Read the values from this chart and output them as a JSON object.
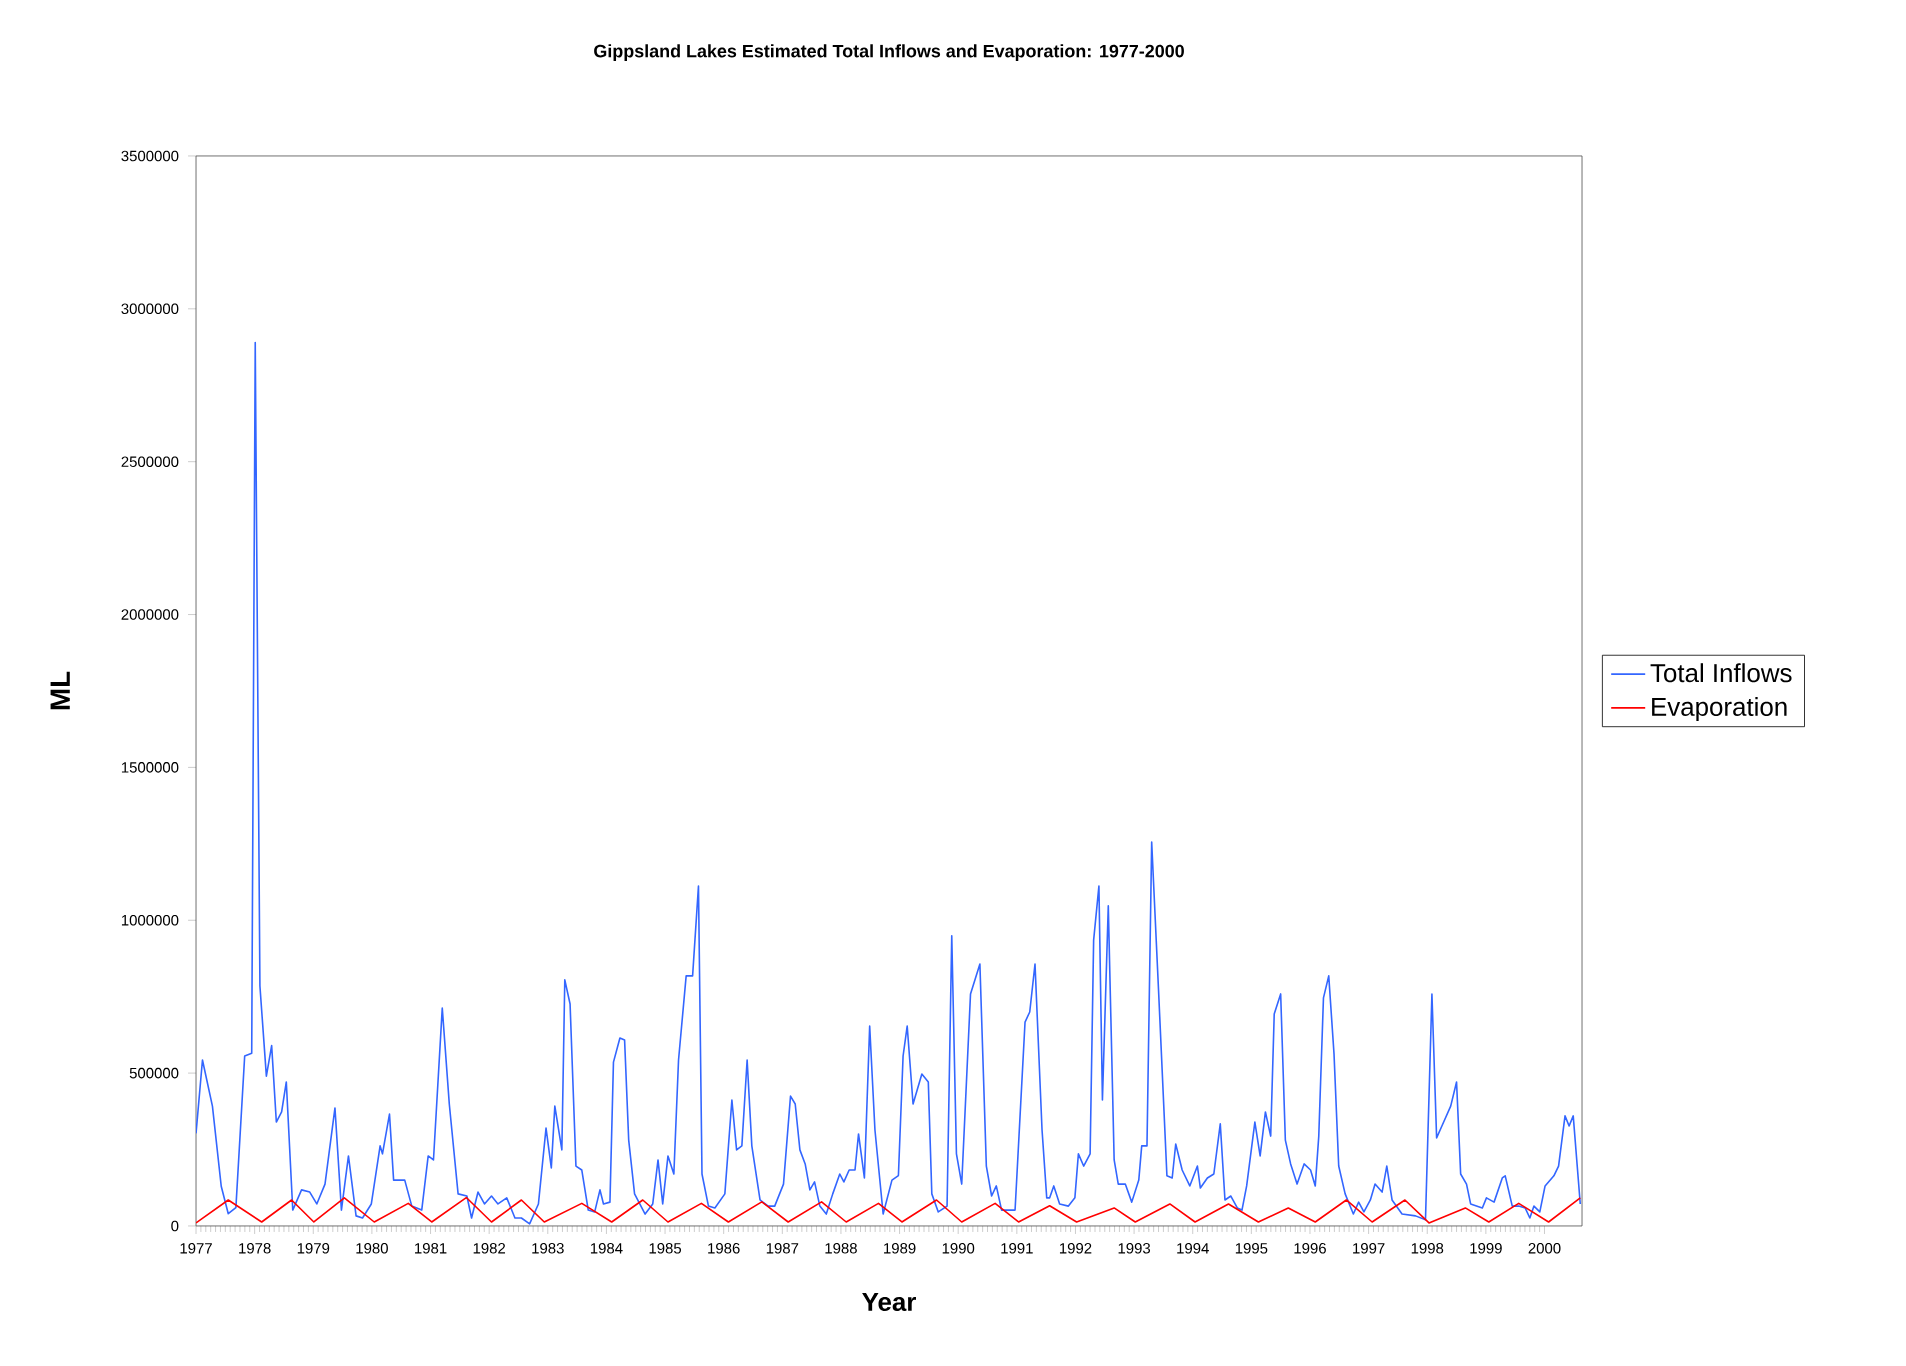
{
  "chart_data": {
    "type": "line",
    "title": "Gippsland Lakes Estimated Total Inflows and Evaporation: 1977-2000",
    "xlabel": "Year",
    "ylabel": "ML",
    "xlim": [
      1977,
      2000.64
    ],
    "xticks": [
      1977,
      1978,
      1979,
      1980,
      1981,
      1982,
      1983,
      1984,
      1985,
      1986,
      1987,
      1988,
      1989,
      1990,
      1991,
      1992,
      1993,
      1994,
      1995,
      1996,
      1997,
      1998,
      1999,
      2000
    ],
    "ylim": [
      0,
      3500000
    ],
    "yticks": [
      0,
      500000,
      1000000,
      1500000,
      2000000,
      2500000,
      3000000,
      3500000
    ],
    "legend": "right",
    "series": [
      {
        "name": "Total Inflows",
        "color": "#3366ff",
        "x": [
          1977.0,
          1977.11,
          1977.28,
          1977.43,
          1977.55,
          1977.68,
          1977.83,
          1977.95,
          1978.01,
          1978.09,
          1978.2,
          1978.29,
          1978.37,
          1978.46,
          1978.54,
          1978.65,
          1978.8,
          1978.94,
          1979.06,
          1979.2,
          1979.37,
          1979.48,
          1979.6,
          1979.73,
          1979.84,
          1979.99,
          1980.14,
          1980.18,
          1980.3,
          1980.37,
          1980.56,
          1980.68,
          1980.85,
          1980.96,
          1981.05,
          1981.2,
          1981.32,
          1981.47,
          1981.62,
          1981.7,
          1981.81,
          1981.92,
          1982.04,
          1982.15,
          1982.3,
          1982.44,
          1982.55,
          1982.69,
          1982.84,
          1982.97,
          1983.06,
          1983.12,
          1983.24,
          1983.29,
          1983.38,
          1983.48,
          1983.58,
          1983.69,
          1983.8,
          1983.89,
          1983.95,
          1984.06,
          1984.12,
          1984.23,
          1984.31,
          1984.38,
          1984.48,
          1984.66,
          1984.79,
          1984.88,
          1984.96,
          1985.05,
          1985.15,
          1985.23,
          1985.36,
          1985.47,
          1985.57,
          1985.63,
          1985.74,
          1985.85,
          1986.02,
          1986.14,
          1986.22,
          1986.31,
          1986.4,
          1986.48,
          1986.62,
          1986.76,
          1986.87,
          1987.02,
          1987.14,
          1987.22,
          1987.3,
          1987.39,
          1987.47,
          1987.55,
          1987.64,
          1987.75,
          1987.86,
          1987.98,
          1988.05,
          1988.14,
          1988.24,
          1988.3,
          1988.4,
          1988.49,
          1988.58,
          1988.72,
          1988.87,
          1988.98,
          1989.06,
          1989.13,
          1989.23,
          1989.38,
          1989.49,
          1989.55,
          1989.66,
          1989.81,
          1989.89,
          1989.97,
          1990.06,
          1990.21,
          1990.37,
          1990.48,
          1990.57,
          1990.65,
          1990.74,
          1990.97,
          1991.14,
          1991.22,
          1991.31,
          1991.43,
          1991.51,
          1991.56,
          1991.63,
          1991.73,
          1991.88,
          1991.99,
          1992.05,
          1992.14,
          1992.25,
          1992.31,
          1992.4,
          1992.46,
          1992.56,
          1992.66,
          1992.73,
          1992.85,
          1992.96,
          1993.08,
          1993.13,
          1993.22,
          1993.3,
          1993.42,
          1993.56,
          1993.65,
          1993.71,
          1993.82,
          1993.95,
          1994.08,
          1994.13,
          1994.25,
          1994.36,
          1994.47,
          1994.55,
          1994.65,
          1994.76,
          1994.84,
          1994.92,
          1995.06,
          1995.15,
          1995.24,
          1995.33,
          1995.39,
          1995.5,
          1995.58,
          1995.67,
          1995.78,
          1995.9,
          1996.01,
          1996.09,
          1996.15,
          1996.23,
          1996.32,
          1996.41,
          1996.49,
          1996.6,
          1996.74,
          1996.83,
          1996.92,
          1997.03,
          1997.11,
          1997.23,
          1997.31,
          1997.4,
          1997.57,
          1997.8,
          1997.97,
          1998.08,
          1998.16,
          1998.25,
          1998.4,
          1998.5,
          1998.57,
          1998.67,
          1998.74,
          1998.94,
          1999.01,
          1999.14,
          1999.28,
          1999.33,
          1999.45,
          1999.56,
          1999.67,
          1999.75,
          1999.82,
          1999.92,
          2000.01,
          2000.16,
          2000.24,
          2000.35,
          2000.42,
          2000.49,
          2000.61
        ],
        "values": [
          303000,
          543000,
          392000,
          130000,
          40000,
          60000,
          556000,
          565000,
          2890000,
          785000,
          490000,
          590000,
          340000,
          373000,
          471000,
          52000,
          118000,
          111000,
          72000,
          137000,
          386000,
          52000,
          229000,
          33000,
          26000,
          72000,
          262000,
          236000,
          366000,
          150000,
          150000,
          65000,
          52000,
          229000,
          216000,
          713000,
          399000,
          105000,
          98000,
          26000,
          111000,
          72000,
          98000,
          72000,
          92000,
          26000,
          26000,
          7000,
          72000,
          320000,
          190000,
          392000,
          249000,
          805000,
          726000,
          196000,
          183000,
          52000,
          46000,
          118000,
          72000,
          78000,
          536000,
          615000,
          608000,
          281000,
          105000,
          39000,
          72000,
          216000,
          72000,
          229000,
          170000,
          543000,
          818000,
          818000,
          1112000,
          170000,
          65000,
          59000,
          105000,
          412000,
          249000,
          262000,
          543000,
          262000,
          85000,
          65000,
          65000,
          137000,
          425000,
          399000,
          249000,
          203000,
          118000,
          144000,
          65000,
          39000,
          105000,
          170000,
          144000,
          183000,
          183000,
          301000,
          157000,
          654000,
          314000,
          39000,
          150000,
          165000,
          556000,
          654000,
          399000,
          497000,
          471000,
          105000,
          46000,
          65000,
          949000,
          236000,
          137000,
          759000,
          857000,
          196000,
          98000,
          131000,
          52000,
          52000,
          667000,
          700000,
          857000,
          314000,
          92000,
          92000,
          131000,
          72000,
          65000,
          92000,
          236000,
          196000,
          236000,
          935000,
          1112000,
          412000,
          1047000,
          216000,
          137000,
          137000,
          78000,
          150000,
          262000,
          262000,
          1256000,
          759000,
          164000,
          157000,
          268000,
          183000,
          131000,
          196000,
          124000,
          157000,
          170000,
          334000,
          85000,
          98000,
          59000,
          52000,
          131000,
          340000,
          229000,
          373000,
          294000,
          693000,
          759000,
          281000,
          203000,
          137000,
          203000,
          183000,
          131000,
          294000,
          746000,
          818000,
          563000,
          196000,
          105000,
          39000,
          78000,
          46000,
          85000,
          137000,
          111000,
          196000,
          85000,
          39000,
          33000,
          20000,
          759000,
          288000,
          327000,
          392000,
          471000,
          170000,
          137000,
          72000,
          59000,
          92000,
          78000,
          157000,
          164000,
          65000,
          65000,
          59000,
          26000,
          65000,
          46000,
          131000,
          164000,
          196000,
          360000,
          327000,
          360000,
          72000
        ]
      },
      {
        "name": "Evaporation",
        "color": "#ff0000",
        "x": [
          1977.0,
          1977.55,
          1978.12,
          1978.63,
          1979.01,
          1979.53,
          1980.04,
          1980.62,
          1981.02,
          1981.61,
          1982.04,
          1982.55,
          1982.94,
          1983.58,
          1984.09,
          1984.62,
          1985.05,
          1985.62,
          1986.08,
          1986.65,
          1987.1,
          1987.67,
          1988.09,
          1988.64,
          1989.04,
          1989.63,
          1990.06,
          1990.63,
          1991.03,
          1991.56,
          1992.02,
          1992.66,
          1993.02,
          1993.61,
          1994.04,
          1994.61,
          1995.12,
          1995.63,
          1996.09,
          1996.62,
          1997.06,
          1997.62,
          1998.03,
          1998.65,
          1999.05,
          1999.56,
          2000.07,
          2000.61
        ],
        "values": [
          10000,
          85000,
          13000,
          85000,
          13000,
          92000,
          13000,
          74000,
          13000,
          93000,
          13000,
          85000,
          13000,
          74000,
          13000,
          85000,
          13000,
          74000,
          13000,
          79000,
          13000,
          79000,
          13000,
          74000,
          13000,
          85000,
          13000,
          74000,
          13000,
          66000,
          13000,
          59000,
          13000,
          72000,
          13000,
          72000,
          13000,
          59000,
          13000,
          85000,
          13000,
          85000,
          10000,
          59000,
          13000,
          74000,
          13000,
          92000
        ]
      }
    ]
  }
}
